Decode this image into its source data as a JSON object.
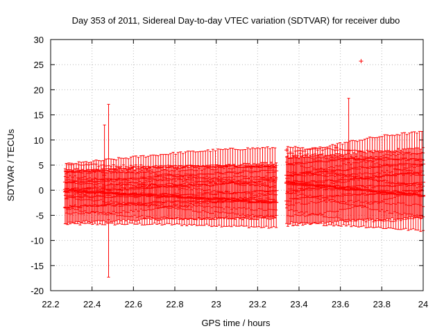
{
  "chart_data": {
    "type": "scatter",
    "title": "Day 353 of 2011, Sidereal Day-to-day VTEC variation (SDTVAR) for receiver dubo",
    "xlabel": "GPS time / hours",
    "ylabel": "SDTVAR / TECUs",
    "xlim": [
      22.2,
      24
    ],
    "ylim": [
      -20,
      30
    ],
    "xticks": [
      "22.2",
      "22.4",
      "22.6",
      "22.8",
      "23",
      "23.2",
      "23.4",
      "23.6",
      "23.8",
      "24"
    ],
    "yticks": [
      "30",
      "25",
      "20",
      "15",
      "10",
      "5",
      "0",
      "-5",
      "-10",
      "-15",
      "-20"
    ],
    "grid": true,
    "marker": "+",
    "error_bars": true,
    "color": "#ff0000",
    "segments": [
      {
        "name": "before gap",
        "x_start": 22.27,
        "x_end": 23.29,
        "centers": [
          -3.5,
          -2.5,
          -1.5,
          -0.5,
          0.5,
          1.5,
          2.5,
          3.5
        ],
        "error_half_width_range": [
          1.5,
          5
        ]
      },
      {
        "name": "after gap",
        "x_start": 23.34,
        "x_end": 24.0,
        "centers": [
          -2,
          -1,
          0,
          1,
          2,
          3,
          4,
          5
        ],
        "error_half_width_range": [
          2,
          7
        ]
      }
    ],
    "notable_points": [
      {
        "x": 22.48,
        "y": 0,
        "err_low": -17.3,
        "err_high": 17.1
      },
      {
        "x": 22.46,
        "y": 3,
        "err_low": -3,
        "err_high": 13
      },
      {
        "x": 23.64,
        "y": 8,
        "err_low": 0,
        "err_high": 18.3
      },
      {
        "x": 23.7,
        "y": 25.7,
        "err_low": 25.7,
        "err_high": 25.7
      },
      {
        "x": 23.34,
        "y": 8.0,
        "err_low": 8.0,
        "err_high": 8.0
      },
      {
        "x": 23.58,
        "y": 8.5,
        "err_low": 8.5,
        "err_high": 8.5
      }
    ]
  }
}
